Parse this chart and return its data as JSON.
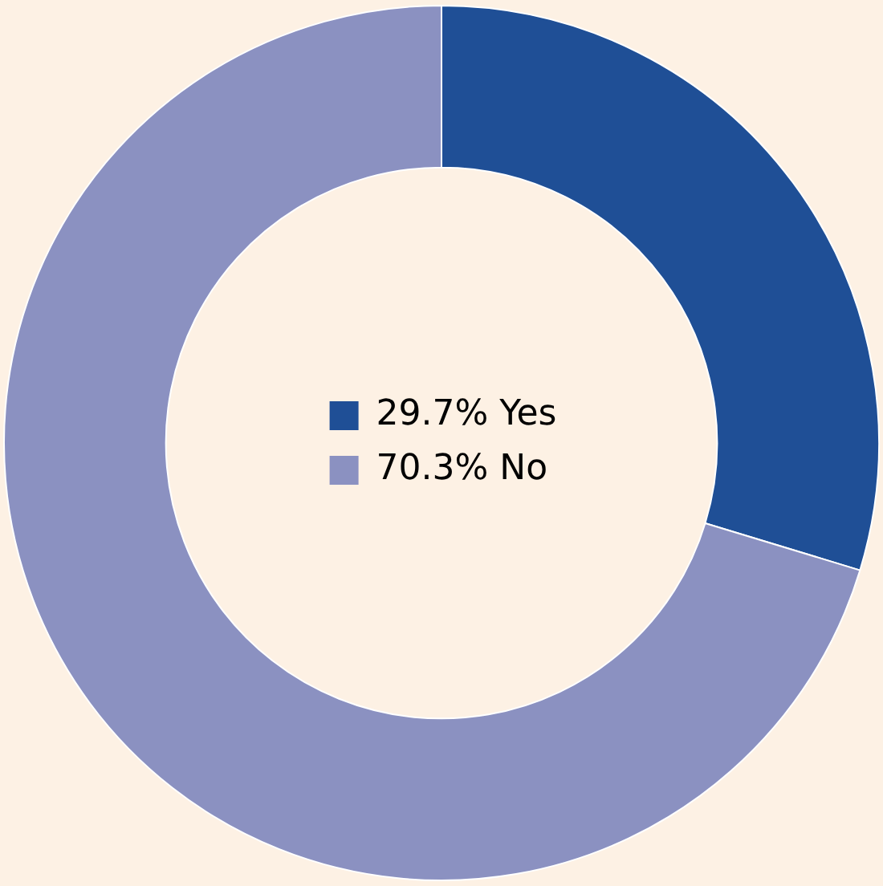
{
  "chart_data": {
    "type": "donut",
    "categories": [
      "Yes",
      "No"
    ],
    "values": [
      29.7,
      70.3
    ],
    "colors": [
      "#1f4f96",
      "#8b91c1"
    ],
    "value_labels": [
      "29.7%",
      "70.3%"
    ],
    "legend": "center"
  }
}
